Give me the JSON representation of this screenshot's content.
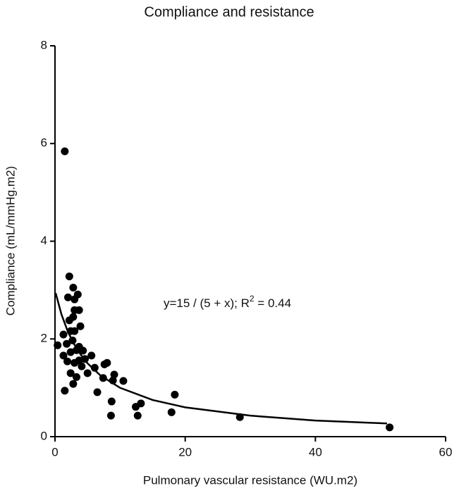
{
  "chart_data": {
    "type": "scatter",
    "title": "Compliance and resistance",
    "x_label": "Pulmonary vascular resistance (WU.m2)",
    "y_label": "Compliance (mL/mmHg.m2)",
    "annotation": {
      "text": "y=15 / (5 + x); R",
      "sup": "2",
      "tail": " = 0.44"
    },
    "xlim": [
      0,
      60
    ],
    "ylim": [
      0,
      8
    ],
    "xticks": [
      0,
      20,
      40,
      60
    ],
    "yticks": [
      0,
      2,
      4,
      6,
      8
    ],
    "grid": false,
    "series": [
      {
        "mode": "markers",
        "color": "#000000",
        "x": [
          1.5,
          0.4,
          1.5,
          1.3,
          1.8,
          2.0,
          2.2,
          2.8,
          3.0,
          3.5,
          3.0,
          3.7,
          2.8,
          2.2,
          3.9,
          2.4,
          3.0,
          2.7,
          1.9,
          2.4,
          3.3,
          3.7,
          2.4,
          2.8,
          3.0,
          3.3,
          3.7,
          4.1,
          4.6,
          5.0,
          5.6,
          6.1,
          6.5,
          7.4,
          7.6,
          8.0,
          8.9,
          9.1,
          8.7,
          8.6,
          10.5,
          12.4,
          12.7,
          13.2,
          17.9,
          18.4,
          28.4,
          51.4,
          1.3,
          4.3
        ],
        "values": [
          5.84,
          1.87,
          0.94,
          2.09,
          1.9,
          2.85,
          3.28,
          3.05,
          2.81,
          2.91,
          2.59,
          2.59,
          2.45,
          2.38,
          2.26,
          2.16,
          2.16,
          1.97,
          1.54,
          1.73,
          1.77,
          1.84,
          1.3,
          1.08,
          1.51,
          1.22,
          1.56,
          1.44,
          1.59,
          1.3,
          1.66,
          1.41,
          0.91,
          1.2,
          1.48,
          1.51,
          1.15,
          1.27,
          0.72,
          0.43,
          1.14,
          0.61,
          0.43,
          0.68,
          0.5,
          0.86,
          0.4,
          0.19,
          1.66,
          1.76
        ]
      },
      {
        "mode": "line",
        "color": "#000000",
        "x": [
          0.1,
          1,
          2,
          3,
          4,
          5,
          7,
          10,
          15,
          20,
          30,
          40,
          51
        ],
        "values": [
          2.94,
          2.5,
          2.14,
          1.88,
          1.67,
          1.5,
          1.25,
          1.0,
          0.75,
          0.6,
          0.43,
          0.33,
          0.27
        ]
      }
    ]
  }
}
